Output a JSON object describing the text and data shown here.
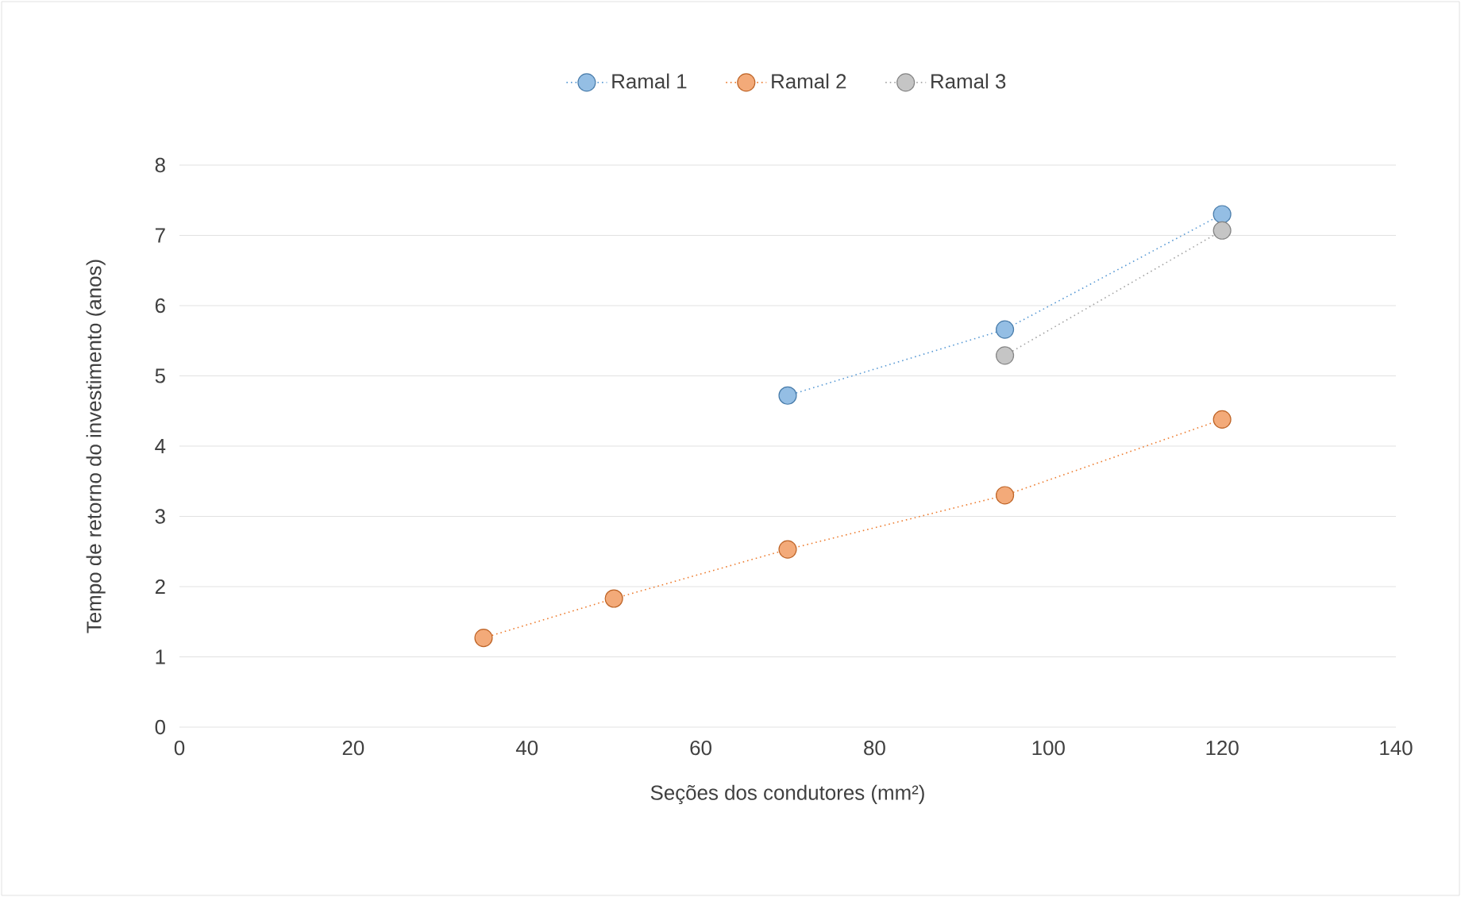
{
  "chart_data": {
    "type": "line",
    "xlabel": "Seções dos condutores (mm²)",
    "ylabel": "Tempo de retorno do investimento (anos)",
    "xlim": [
      0,
      140
    ],
    "xticks": [
      0,
      20,
      40,
      60,
      80,
      100,
      120,
      140
    ],
    "ylim": [
      0,
      8
    ],
    "yticks": [
      0,
      1,
      2,
      3,
      4,
      5,
      6,
      7,
      8
    ],
    "grid": "y",
    "legend": "top",
    "marker": "circle",
    "line_style": "dotted",
    "series": [
      {
        "name": "Ramal 1",
        "color": "#5b9bd5",
        "x": [
          70,
          95,
          120
        ],
        "values": [
          4.72,
          5.66,
          7.3
        ]
      },
      {
        "name": "Ramal 2",
        "color": "#ed7d31",
        "x": [
          35,
          50,
          70,
          95,
          120
        ],
        "values": [
          1.27,
          1.83,
          2.53,
          3.3,
          4.38
        ]
      },
      {
        "name": "Ramal 3",
        "color": "#a5a5a5",
        "x": [
          95,
          120
        ],
        "values": [
          5.29,
          7.07
        ]
      }
    ]
  }
}
